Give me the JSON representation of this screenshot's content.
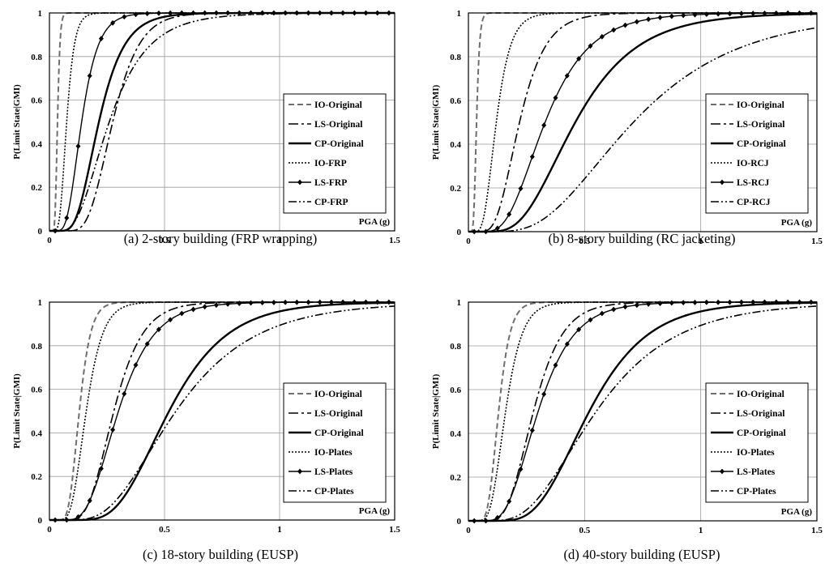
{
  "chart_data": [
    {
      "type": "line",
      "caption": "(a) 2-story building (FRP wrapping)",
      "xlabel": "PGA (g)",
      "ylabel": "P(Limit State|GMI)",
      "xlim": [
        0,
        1.5
      ],
      "ylim": [
        0,
        1
      ],
      "xticks": [
        "0",
        "0.5",
        "1",
        "1.5"
      ],
      "yticks": [
        "0",
        "0.2",
        "0.4",
        "0.6",
        "0.8",
        "1"
      ],
      "grid": true,
      "legend_position": "right",
      "series": [
        {
          "name": "IO-Original",
          "style": "dashed-gray",
          "median": 0.035,
          "beta": 0.25
        },
        {
          "name": "LS-Original",
          "style": "dashdot",
          "median": 0.275,
          "beta": 0.33
        },
        {
          "name": "CP-Original",
          "style": "solid-thick",
          "median": 0.215,
          "beta": 0.4
        },
        {
          "name": "IO-FRP",
          "style": "dotted",
          "median": 0.075,
          "beta": 0.35
        },
        {
          "name": "LS-FRP",
          "style": "solid-diamond",
          "median": 0.14,
          "beta": 0.4
        },
        {
          "name": "CP-FRP",
          "style": "dashdotdot",
          "median": 0.26,
          "beta": 0.5
        }
      ]
    },
    {
      "type": "line",
      "caption": "(b) 8-story building (RC jacketing)",
      "xlabel": "PGA (g)",
      "ylabel": "P(Limit State|GMI)",
      "xlim": [
        0,
        1.5
      ],
      "ylim": [
        0,
        1
      ],
      "xticks": [
        "0",
        "0.5",
        "1",
        "1.5"
      ],
      "yticks": [
        "0",
        "0.2",
        "0.4",
        "0.6",
        "0.8",
        "1"
      ],
      "grid": true,
      "legend_position": "right",
      "series": [
        {
          "name": "IO-Original",
          "style": "dashed-gray",
          "median": 0.035,
          "beta": 0.3
        },
        {
          "name": "LS-Original",
          "style": "dashdot",
          "median": 0.22,
          "beta": 0.4
        },
        {
          "name": "CP-Original",
          "style": "solid-thick",
          "median": 0.46,
          "beta": 0.45
        },
        {
          "name": "IO-RCJ",
          "style": "dotted",
          "median": 0.12,
          "beta": 0.4
        },
        {
          "name": "LS-RCJ",
          "style": "solid-diamond",
          "median": 0.33,
          "beta": 0.45
        },
        {
          "name": "CP-RCJ",
          "style": "dashdotdot",
          "median": 0.71,
          "beta": 0.5
        }
      ]
    },
    {
      "type": "line",
      "caption": "(c) 18-story building (EUSP)",
      "xlabel": "PGA (g)",
      "ylabel": "P(Limit State|GMI)",
      "xlim": [
        0,
        1.5
      ],
      "ylim": [
        0,
        1
      ],
      "xticks": [
        "0",
        "0.5",
        "1",
        "1.5"
      ],
      "yticks": [
        "0",
        "0.2",
        "0.4",
        "0.6",
        "0.8",
        "1"
      ],
      "grid": true,
      "legend_position": "right",
      "series": [
        {
          "name": "IO-Original",
          "style": "dashed-gray",
          "median": 0.13,
          "beta": 0.3
        },
        {
          "name": "LS-Original",
          "style": "dashdot",
          "median": 0.28,
          "beta": 0.35
        },
        {
          "name": "CP-Original",
          "style": "solid-thick",
          "median": 0.52,
          "beta": 0.38
        },
        {
          "name": "IO-Plates",
          "style": "dotted",
          "median": 0.16,
          "beta": 0.35
        },
        {
          "name": "LS-Plates",
          "style": "solid-diamond",
          "median": 0.3,
          "beta": 0.4
        },
        {
          "name": "CP-Plates",
          "style": "dashdotdot",
          "median": 0.55,
          "beta": 0.48
        }
      ]
    },
    {
      "type": "line",
      "caption": "(d) 40-story building (EUSP)",
      "xlabel": "PGA (g)",
      "ylabel": "P(Limit State|GMI)",
      "xlim": [
        0,
        1.5
      ],
      "ylim": [
        0,
        1
      ],
      "xticks": [
        "0",
        "0.5",
        "1",
        "1.5"
      ],
      "yticks": [
        "0",
        "0.2",
        "0.4",
        "0.6",
        "0.8",
        "1"
      ],
      "grid": true,
      "legend_position": "right",
      "series": [
        {
          "name": "IO-Original",
          "style": "dashed-gray",
          "median": 0.13,
          "beta": 0.3
        },
        {
          "name": "LS-Original",
          "style": "dashdot",
          "median": 0.28,
          "beta": 0.35
        },
        {
          "name": "CP-Original",
          "style": "solid-thick",
          "median": 0.52,
          "beta": 0.38
        },
        {
          "name": "IO-Plates",
          "style": "dotted",
          "median": 0.16,
          "beta": 0.35
        },
        {
          "name": "LS-Plates",
          "style": "solid-diamond",
          "median": 0.3,
          "beta": 0.4
        },
        {
          "name": "CP-Plates",
          "style": "dashdotdot",
          "median": 0.55,
          "beta": 0.48
        }
      ]
    }
  ]
}
